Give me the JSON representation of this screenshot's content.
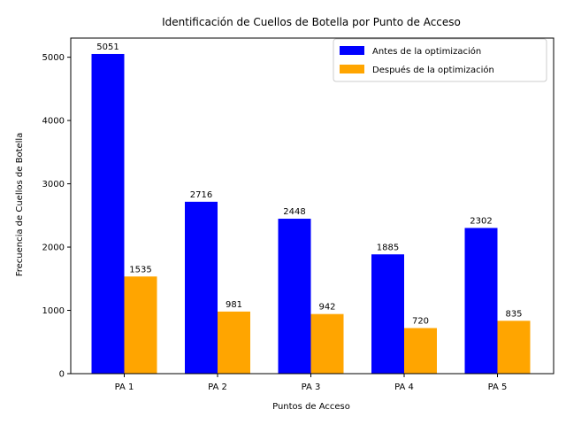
{
  "chart_data": {
    "type": "bar",
    "title": "Identificación de Cuellos de Botella por Punto de Acceso",
    "xlabel": "Puntos de Acceso",
    "ylabel": "Frecuencia de Cuellos de Botella",
    "categories": [
      "PA 1",
      "PA 2",
      "PA 3",
      "PA 4",
      "PA 5"
    ],
    "series": [
      {
        "name": "Antes de la optimización",
        "color": "#0000ff",
        "values": [
          5051,
          2716,
          2448,
          1885,
          2302
        ]
      },
      {
        "name": "Después de la optimización",
        "color": "#ffa500",
        "values": [
          1535,
          981,
          942,
          720,
          835
        ]
      }
    ],
    "ylim": [
      0,
      5302.55
    ],
    "yticks": [
      0,
      1000,
      2000,
      3000,
      4000,
      5000
    ],
    "grid": false,
    "legend_position": "top-right"
  }
}
